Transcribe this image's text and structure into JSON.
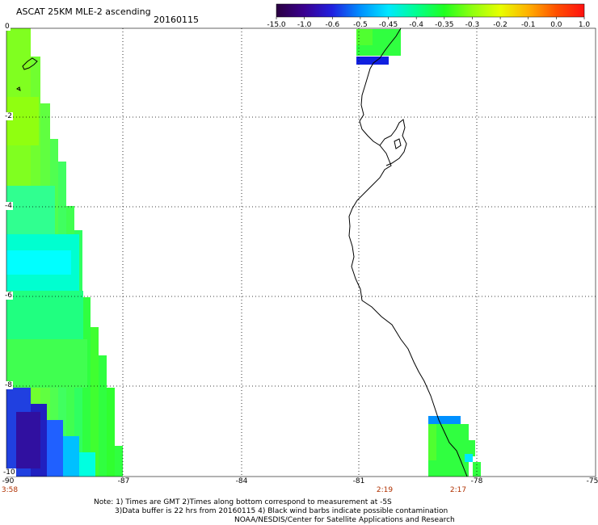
{
  "title": "ASCAT 25KM MLE-2 ascending",
  "date": "20160115",
  "colorbar": {
    "labels": [
      "-15.0",
      "-1.0",
      "-0.6",
      "-0.5",
      "-0.45",
      "-0.4",
      "-0.35",
      "-0.3",
      "-0.2",
      "-0.1",
      "0.0",
      "1.0"
    ],
    "colors": [
      "#2a0040",
      "#3a0090",
      "#2020e0",
      "#0090ff",
      "#00e8ff",
      "#00ff90",
      "#20ff20",
      "#90ff10",
      "#e8ff00",
      "#ffb000",
      "#ff5000",
      "#ff1010"
    ]
  },
  "axes": {
    "lat_labels": [
      "0",
      "-2",
      "-4",
      "-6",
      "-8",
      "-10"
    ],
    "lon_labels": [
      "-90",
      "-87",
      "-84",
      "-81",
      "-78",
      "-75"
    ]
  },
  "pass_times": [
    {
      "lon": "-90",
      "time": "3:58"
    },
    {
      "lon": "-80.5",
      "time": "2:19"
    },
    {
      "lon": "-78.6",
      "time": "2:17"
    }
  ],
  "notes": {
    "line1": "Note: 1) Times are GMT 2)Times along bottom correspond to measurement at -5S",
    "line2": "3)Data buffer is 22 hrs from 20160115 4) Black wind barbs indicate possible contamination",
    "line3": "NOAA/NESDIS/Center for Satellite Applications and Research"
  }
}
